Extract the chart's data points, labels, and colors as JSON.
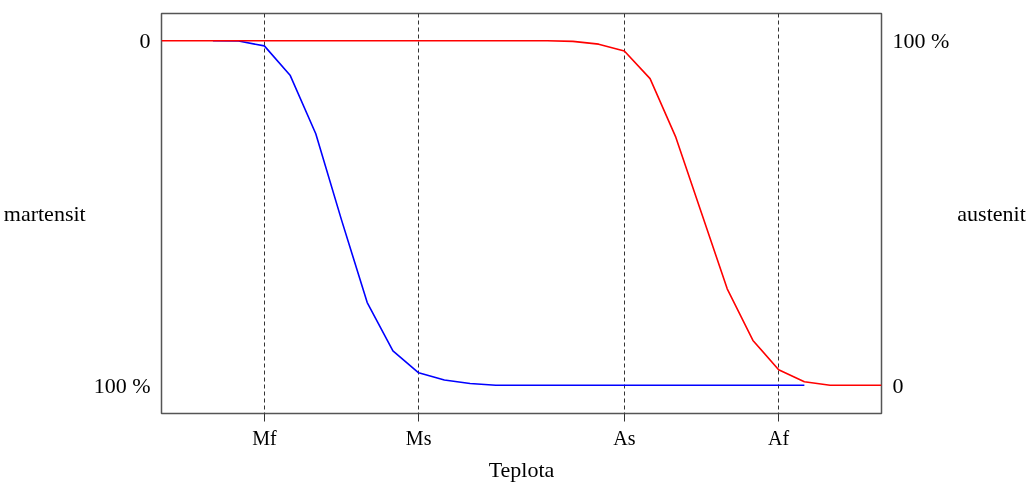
{
  "chart_data": {
    "type": "line",
    "xlabel": "Teplota",
    "ylabel": "martensit",
    "y2label": "austenit",
    "categories": [
      null,
      null,
      null,
      null,
      "Mf",
      null,
      null,
      null,
      null,
      null,
      "Ms",
      null,
      null,
      null,
      null,
      null,
      null,
      null,
      "As",
      null,
      null,
      null,
      null,
      null,
      "Af",
      null,
      null,
      null,
      null
    ],
    "ylim": [
      108.2,
      -7.9
    ],
    "yticks": [
      0,
      {
        "value": 100,
        "label": "100 %"
      }
    ],
    "y2lim": [
      -8.2,
      107.9
    ],
    "y2ticks": [
      {
        "value": 100,
        "label": "100 %"
      },
      0
    ],
    "series": [
      {
        "color": "#0000ff",
        "axis": "y",
        "values": [
          null,
          null,
          0,
          0.1,
          1.5,
          10,
          27,
          52,
          76,
          90,
          96.4,
          98.5,
          99.5,
          100,
          100,
          100,
          100,
          100,
          100,
          100,
          100,
          100,
          100,
          100,
          100,
          100,
          null,
          null,
          null
        ]
      },
      {
        "color": "#ff0000",
        "axis": "y2",
        "values": [
          100,
          100,
          100,
          100,
          100,
          100,
          100,
          100,
          100,
          100,
          100,
          100,
          100,
          100,
          100,
          100,
          99.8,
          99,
          97,
          89,
          72,
          50,
          28,
          13,
          4.5,
          1,
          0,
          0,
          0
        ]
      }
    ],
    "grid": "x",
    "marker": "none",
    "line_style": "solid"
  }
}
